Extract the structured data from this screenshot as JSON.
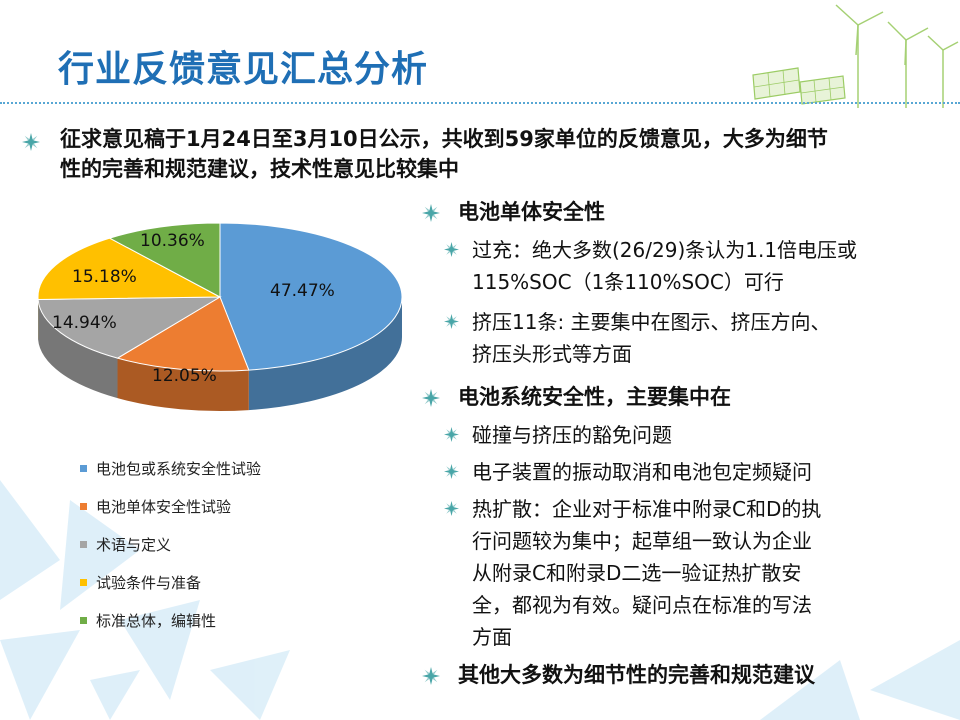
{
  "title": "行业反馈意见汇总分析",
  "intro": {
    "line1": "征求意见稿于1月24日至3月10日公示，共收到59家单位的反馈意见，大多为细节",
    "line2": "性的完善和规范建议，技术性意见比较集中"
  },
  "sections": [
    {
      "heading": "电池单体安全性",
      "items": [
        {
          "lines": [
            "过充：绝大多数(26/29)条认为1.1倍电压或",
            "115%SOC（1条110%SOC）可行"
          ]
        },
        {
          "lines": [
            "挤压11条: 主要集中在图示、挤压方向、",
            "挤压头形式等方面"
          ]
        }
      ]
    },
    {
      "heading": "电池系统安全性，主要集中在",
      "items": [
        {
          "lines": [
            "碰撞与挤压的豁免问题"
          ]
        },
        {
          "lines": [
            "电子装置的振动取消和电池包定频疑问"
          ]
        },
        {
          "lines": [
            "热扩散：企业对于标准中附录C和D的执",
            "行问题较为集中；起草组一致认为企业",
            "从附录C和附录D二选一验证热扩散安",
            "全，都视为有效。疑问点在标准的写法",
            "方面"
          ]
        }
      ]
    },
    {
      "heading": "其他大多数为细节性的完善和规范建议",
      "items": []
    }
  ],
  "chart_data": {
    "type": "pie",
    "categories": [
      "电池包或系统安全性试验",
      "电池单体安全性试验",
      "术语与定义",
      "试验条件与准备",
      "标准总体，编辑性"
    ],
    "values": [
      47.47,
      12.05,
      14.94,
      15.18,
      10.36
    ],
    "data_labels": [
      "47.47%",
      "12.05%",
      "14.94%",
      "15.18%",
      "10.36%"
    ],
    "colors": [
      "#5b9bd5",
      "#ed7d31",
      "#a5a5a5",
      "#ffc000",
      "#70ad47"
    ],
    "legend_position": "bottom-left",
    "style": "3d"
  },
  "colors": {
    "title": "#1f6fb5",
    "bullet_star": "#4aa6a8",
    "dotted_line": "#58a7d4"
  },
  "icons": {
    "bullet": "snowflake-star-icon",
    "decor": "wind-turbine-solar-icon"
  }
}
